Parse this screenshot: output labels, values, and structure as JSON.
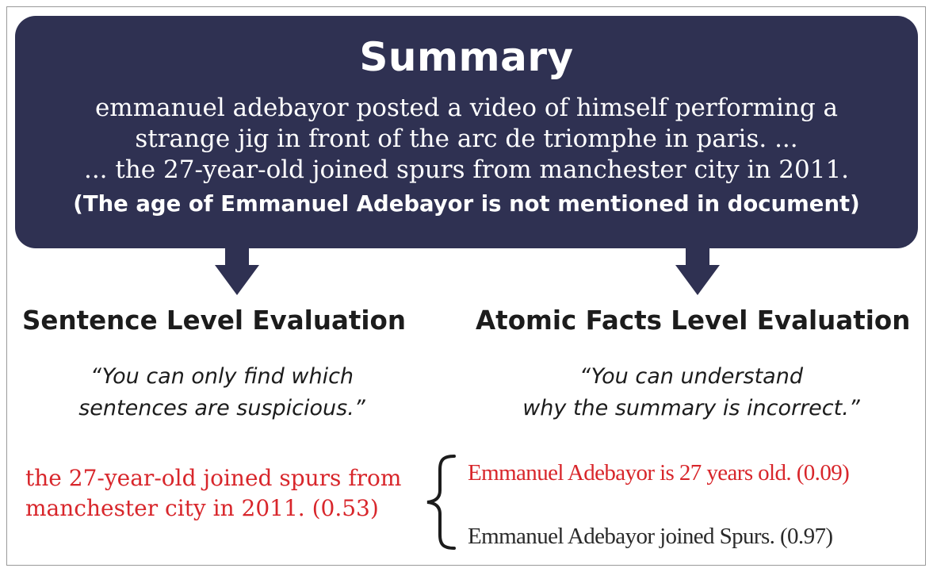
{
  "colors": {
    "box": "#2f3152",
    "text_on_box": "#ffffff",
    "heading": "#1c1c1c",
    "highlight_red": "#d8262b",
    "normal_fact": "#2a2a2a"
  },
  "summary": {
    "title": "Summary",
    "lines": [
      "emmanuel adebayor posted a video of himself performing a",
      "strange jig in front of the arc de triomphe in paris. ...",
      "... the 27-year-old joined spurs from manchester city in 2011."
    ],
    "note": "(The age of Emmanuel Adebayor is not mentioned in document)"
  },
  "sentence_level": {
    "heading": "Sentence Level Evaluation",
    "quote_lines": [
      "“You can only find which",
      "sentences are suspicious.”"
    ],
    "sentence_lines": [
      "the 27-year-old joined spurs from",
      "manchester city in 2011. (0.53)"
    ]
  },
  "atomic_level": {
    "heading": "Atomic Facts Level Evaluation",
    "quote_lines": [
      "“You can understand",
      "why the summary is incorrect.”"
    ],
    "facts": [
      {
        "text": "Emmanuel Adebayor is 27 years old. (0.09)",
        "status": "incorrect"
      },
      {
        "text": "Emmanuel Adebayor joined Spurs. (0.97)",
        "status": "correct"
      }
    ]
  },
  "icons": {
    "arrows": [
      "down-arrow-icon",
      "down-arrow-icon"
    ],
    "brace": "left-curly-brace-icon"
  }
}
